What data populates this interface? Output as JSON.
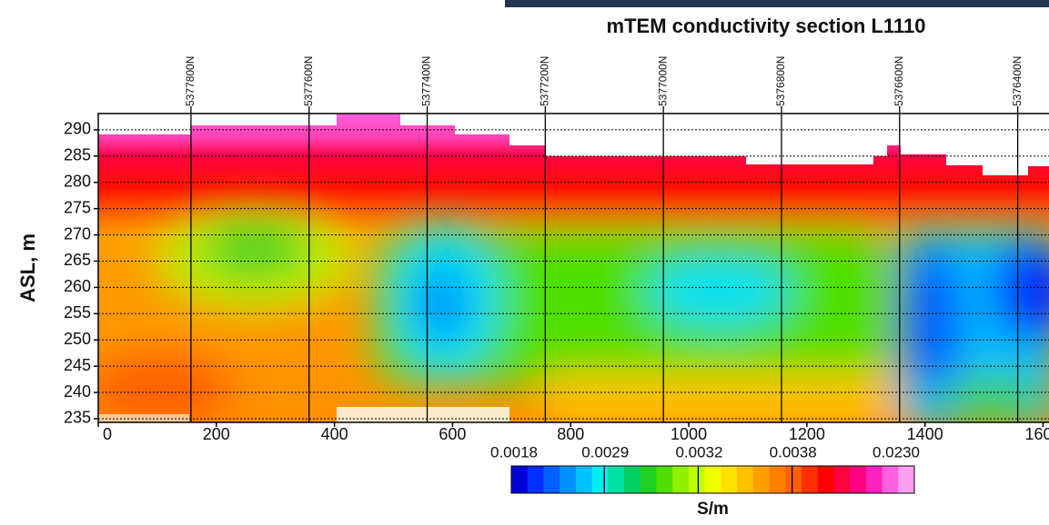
{
  "chart_data": {
    "type": "heatmap",
    "title": "mTEM conductivity section L1110",
    "ylabel": "ASL, m",
    "xlim": [
      0,
      1610
    ],
    "xticks": [
      0,
      200,
      400,
      600,
      800,
      1000,
      1200,
      1400,
      1600
    ],
    "ylim": [
      234.3,
      293.1
    ],
    "yticks": [
      235,
      240,
      245,
      250,
      255,
      260,
      265,
      270,
      275,
      280,
      285,
      290
    ],
    "grid": true,
    "stations": [
      {
        "value": 157,
        "label": "5377800N"
      },
      {
        "value": 357,
        "label": "5377600N"
      },
      {
        "value": 557,
        "label": "5377400N"
      },
      {
        "value": 757,
        "label": "5377200N"
      },
      {
        "value": 957,
        "label": "5377000N"
      },
      {
        "value": 1157,
        "label": "5376800N"
      },
      {
        "value": 1357,
        "label": "5376600N"
      },
      {
        "value": 1557,
        "label": "5376400N"
      }
    ],
    "colorbar": {
      "label": "S/m",
      "ticks": [
        0.0018,
        0.0029,
        0.0032,
        0.0038,
        {
          "value": 0.023,
          "label": "0.0230"
        }
      ],
      "colors": [
        "#0000d8",
        "#0030ff",
        "#0060ff",
        "#0090ff",
        "#00c0ff",
        "#00eef0",
        "#00e0a0",
        "#00d060",
        "#20d020",
        "#50e000",
        "#90f000",
        "#c0ff00",
        "#f0ff00",
        "#ffe000",
        "#ffc000",
        "#ffa000",
        "#ff8000",
        "#ff6000",
        "#ff3000",
        "#ff0000",
        "#ff0040",
        "#ff0080",
        "#ff20c0",
        "#ff60e0",
        "#ffa0f0"
      ]
    }
  }
}
